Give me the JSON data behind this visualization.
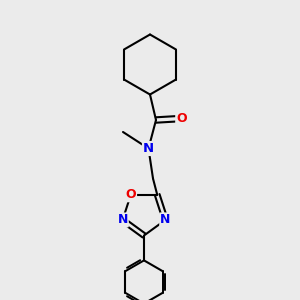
{
  "background_color": "#ebebeb",
  "bond_color": "#000000",
  "atom_colors": {
    "N": "#0000ee",
    "O": "#ee0000",
    "C": "#000000"
  },
  "figsize": [
    3.0,
    3.0
  ],
  "dpi": 100,
  "xlim": [
    0,
    10
  ],
  "ylim": [
    0,
    10
  ]
}
